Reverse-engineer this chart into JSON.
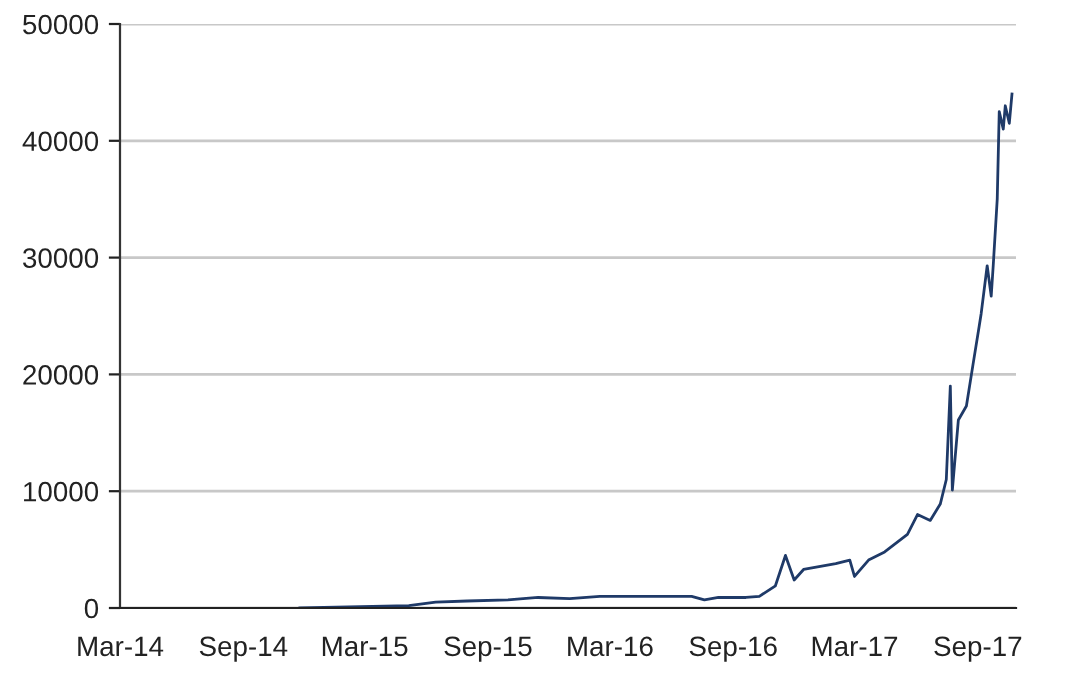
{
  "chart_data": {
    "type": "line",
    "x": [
      "2014-11-24",
      "2015-05-06",
      "2015-06-15",
      "2015-08-01",
      "2015-10-01",
      "2015-11-15",
      "2016-01-01",
      "2016-02-15",
      "2016-07-01",
      "2016-07-20",
      "2016-08-10",
      "2016-09-20",
      "2016-10-10",
      "2016-11-03",
      "2016-11-18",
      "2016-12-01",
      "2016-12-15",
      "2017-02-01",
      "2017-02-22",
      "2017-03-01",
      "2017-03-22",
      "2017-04-15",
      "2017-05-19",
      "2017-06-03",
      "2017-06-22",
      "2017-07-07",
      "2017-07-16",
      "2017-07-22",
      "2017-07-25",
      "2017-08-03",
      "2017-08-15",
      "2017-08-25",
      "2017-09-03",
      "2017-09-06",
      "2017-09-15",
      "2017-09-21",
      "2017-09-24",
      "2017-09-30",
      "2017-10-03",
      "2017-10-09",
      "2017-10-12",
      "2017-10-18",
      "2017-10-22"
    ],
    "series": [
      {
        "color": "#1f3a68",
        "values": [
          0,
          200,
          500,
          600,
          700,
          900,
          800,
          1000,
          1000,
          700,
          900,
          900,
          1000,
          1900,
          4500,
          2400,
          3300,
          3800,
          4100,
          2700,
          4100,
          4800,
          6300,
          8000,
          7500,
          8900,
          11000,
          19000,
          10100,
          16100,
          17300,
          20900,
          24100,
          25200,
          29300,
          26700,
          29300,
          35000,
          42500,
          41000,
          43000,
          41500,
          44000
        ]
      }
    ],
    "xlim": [
      "2014-03-01",
      "2017-10-28"
    ],
    "xticks": [
      {
        "value": "2014-03-01",
        "label": "Mar-14"
      },
      {
        "value": "2014-09-01",
        "label": "Sep-14"
      },
      {
        "value": "2015-03-01",
        "label": "Mar-15"
      },
      {
        "value": "2015-09-01",
        "label": "Sep-15"
      },
      {
        "value": "2016-03-01",
        "label": "Mar-16"
      },
      {
        "value": "2016-09-01",
        "label": "Sep-16"
      },
      {
        "value": "2017-03-01",
        "label": "Mar-17"
      },
      {
        "value": "2017-09-01",
        "label": "Sep-17"
      }
    ],
    "ylim": [
      0,
      50000
    ],
    "yticks": [
      0,
      10000,
      20000,
      30000,
      40000,
      50000
    ],
    "grid": "y",
    "marker": "none",
    "line_style": "solid"
  }
}
